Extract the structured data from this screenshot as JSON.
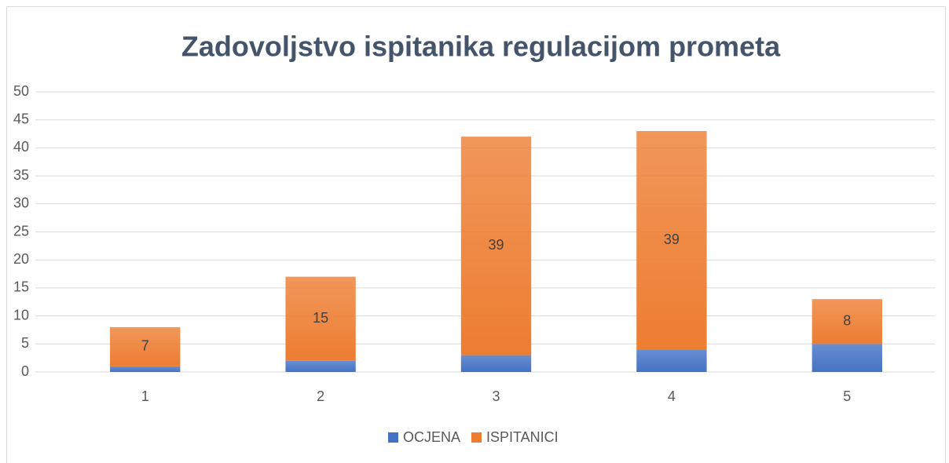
{
  "chart_data": {
    "type": "stacked_bar",
    "title": "Zadovoljstvo ispitanika regulacijom prometa",
    "categories": [
      "1",
      "2",
      "3",
      "4",
      "5"
    ],
    "series": [
      {
        "name": "OCJENA",
        "color": "#4472c4",
        "values": [
          1,
          2,
          3,
          4,
          5
        ]
      },
      {
        "name": "ISPITANICI",
        "color": "#ed7d31",
        "values": [
          7,
          15,
          39,
          39,
          8
        ],
        "data_labels": true
      }
    ],
    "ylim": [
      0,
      50
    ],
    "yticks": [
      0,
      5,
      10,
      15,
      20,
      25,
      30,
      35,
      40,
      45,
      50
    ],
    "grid": true,
    "legend": "bottom"
  }
}
